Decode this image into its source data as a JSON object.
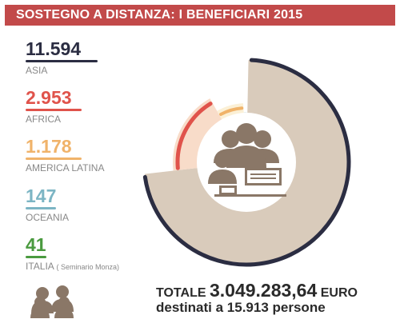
{
  "header": {
    "title": "SOSTEGNO A DISTANZA: I BENEFICIARI 2015"
  },
  "colors": {
    "title_bg": "#c24a4a",
    "asia": "#2b2d42",
    "africa": "#e0534b",
    "america_latina": "#f0b36a",
    "oceania": "#7cb5c4",
    "italia": "#4a9a3f",
    "donut_base": "#d9cbbb",
    "center": "#ffffff",
    "icon": "#8a7767"
  },
  "legend": [
    {
      "value": "11.594",
      "label": "ASIA",
      "color": "#2b2d42"
    },
    {
      "value": "2.953",
      "label": "AFRICA",
      "color": "#e0534b"
    },
    {
      "value": "1.178",
      "label": "AMERICA LATINA",
      "color": "#f0b36a"
    },
    {
      "value": "147",
      "label": "OCEANIA",
      "color": "#7cb5c4"
    },
    {
      "value": "41",
      "label": "ITALIA",
      "note": "( Seminario Monza)",
      "color": "#4a9a3f"
    }
  ],
  "chart_data": {
    "type": "pie",
    "title": "SOSTEGNO A DISTANZA: I BENEFICIARI 2015",
    "categories": [
      "ASIA",
      "AFRICA",
      "AMERICA LATINA",
      "OCEANIA",
      "ITALIA"
    ],
    "values": [
      11594,
      2953,
      1178,
      147,
      41
    ],
    "colors": [
      "#2b2d42",
      "#e0534b",
      "#f0b36a",
      "#7cb5c4",
      "#4a9a3f"
    ],
    "total": 15913,
    "donut": true
  },
  "footer": {
    "total_prefix": "TOTALE",
    "total_amount": "3.049.283,64",
    "total_currency": "EURO",
    "subtitle": "destinati a 15.913 persone"
  }
}
